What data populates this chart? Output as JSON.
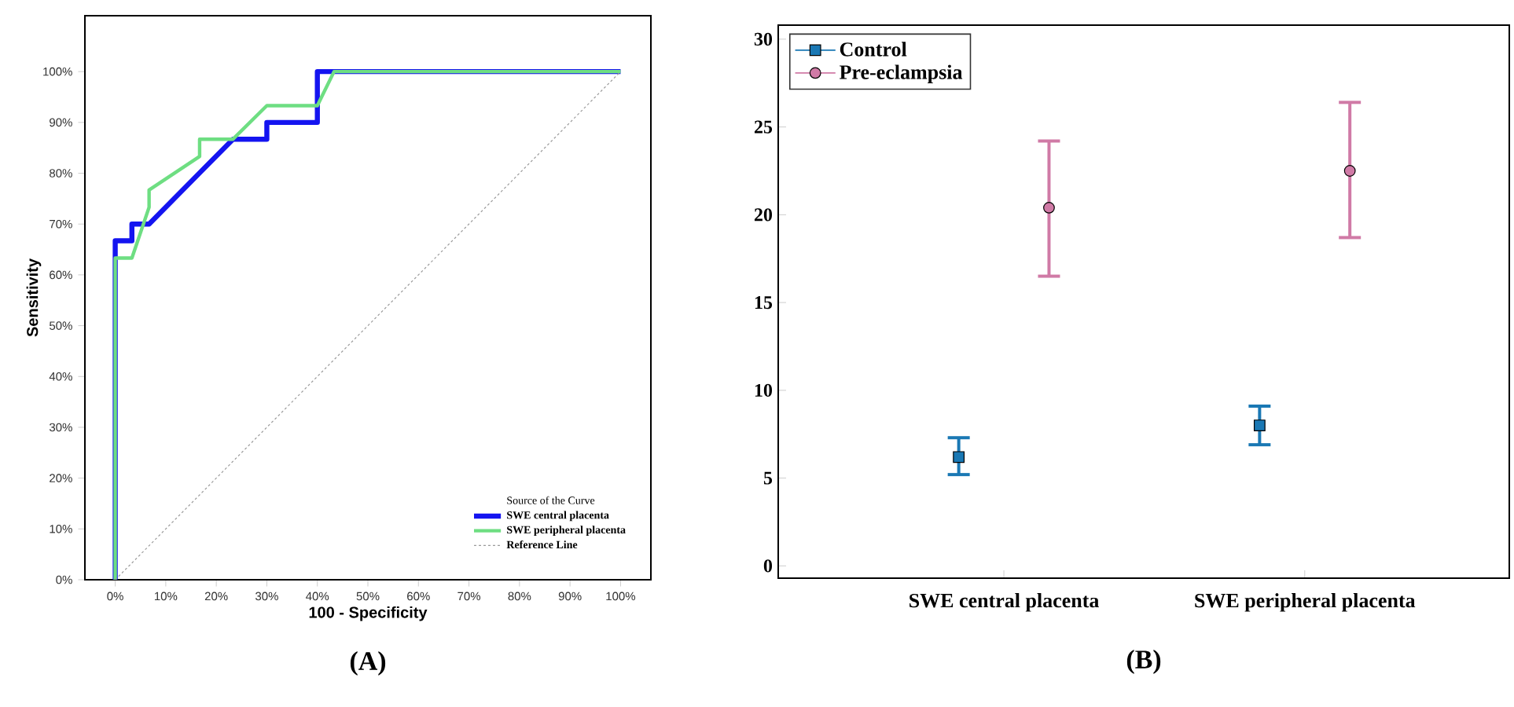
{
  "chart_data": [
    {
      "type": "line",
      "xlabel": "100 - Specificity",
      "ylabel": "Sensitivity",
      "legend_title": "Source of the Curve",
      "legend": "bottom right",
      "xlim": [
        -6,
        106
      ],
      "ylim": [
        0,
        111
      ],
      "xticks": [
        {
          "value": 0,
          "label": "0%"
        },
        {
          "value": 10,
          "label": "10%"
        },
        {
          "value": 20,
          "label": "20%"
        },
        {
          "value": 30,
          "label": "30%"
        },
        {
          "value": 40,
          "label": "40%"
        },
        {
          "value": 50,
          "label": "50%"
        },
        {
          "value": 60,
          "label": "60%"
        },
        {
          "value": 70,
          "label": "70%"
        },
        {
          "value": 80,
          "label": "80%"
        },
        {
          "value": 90,
          "label": "90%"
        },
        {
          "value": 100,
          "label": "100%"
        }
      ],
      "yticks": [
        {
          "value": 0,
          "label": "0%"
        },
        {
          "value": 10,
          "label": "10%"
        },
        {
          "value": 20,
          "label": "20%"
        },
        {
          "value": 30,
          "label": "30%"
        },
        {
          "value": 40,
          "label": "40%"
        },
        {
          "value": 50,
          "label": "50%"
        },
        {
          "value": 60,
          "label": "60%"
        },
        {
          "value": 70,
          "label": "70%"
        },
        {
          "value": 80,
          "label": "80%"
        },
        {
          "value": 90,
          "label": "90%"
        },
        {
          "value": 100,
          "label": "100%"
        }
      ],
      "annotations": [
        "(A)"
      ],
      "series": [
        {
          "name": "SWE central placenta",
          "color": "#1414f0",
          "x": [
            0,
            0,
            3.3,
            3.3,
            6.7,
            23.3,
            30,
            30,
            40,
            40,
            43.3,
            100
          ],
          "values": [
            0,
            66.7,
            66.7,
            70,
            70,
            86.7,
            86.7,
            90,
            90,
            100,
            100,
            100
          ]
        },
        {
          "name": "SWE peripheral placenta",
          "color": "#6ede82",
          "x": [
            0,
            0,
            3.3,
            6.7,
            6.7,
            16.7,
            16.7,
            23.3,
            30,
            40,
            43.3,
            100
          ],
          "values": [
            0,
            63.3,
            63.3,
            73.3,
            76.7,
            83.3,
            86.7,
            86.7,
            93.3,
            93.3,
            100,
            100
          ]
        },
        {
          "name": "Reference Line",
          "color": "#9a9a9a",
          "line_style": "dotted",
          "x": [
            0,
            100
          ],
          "values": [
            0,
            100
          ]
        }
      ]
    },
    {
      "type": "scatter",
      "legend": "top left",
      "categories": [
        "SWE central placenta",
        "SWE peripheral placenta"
      ],
      "ylim": [
        -0.7,
        30.8
      ],
      "yticks": [
        0,
        5,
        10,
        15,
        20,
        25,
        30
      ],
      "annotations": [
        "(B)"
      ],
      "series": [
        {
          "name": "Control",
          "color": "#1a78b4",
          "marker": "square",
          "values": [
            6.2,
            8.0
          ],
          "errors": [
            [
              5.2,
              7.3
            ],
            [
              6.9,
              9.1
            ]
          ]
        },
        {
          "name": "Pre-eclampsia",
          "color": "#d07aa6",
          "marker": "circle",
          "values": [
            20.4,
            22.5
          ],
          "errors": [
            [
              16.5,
              24.2
            ],
            [
              18.7,
              26.4
            ]
          ]
        }
      ]
    }
  ]
}
